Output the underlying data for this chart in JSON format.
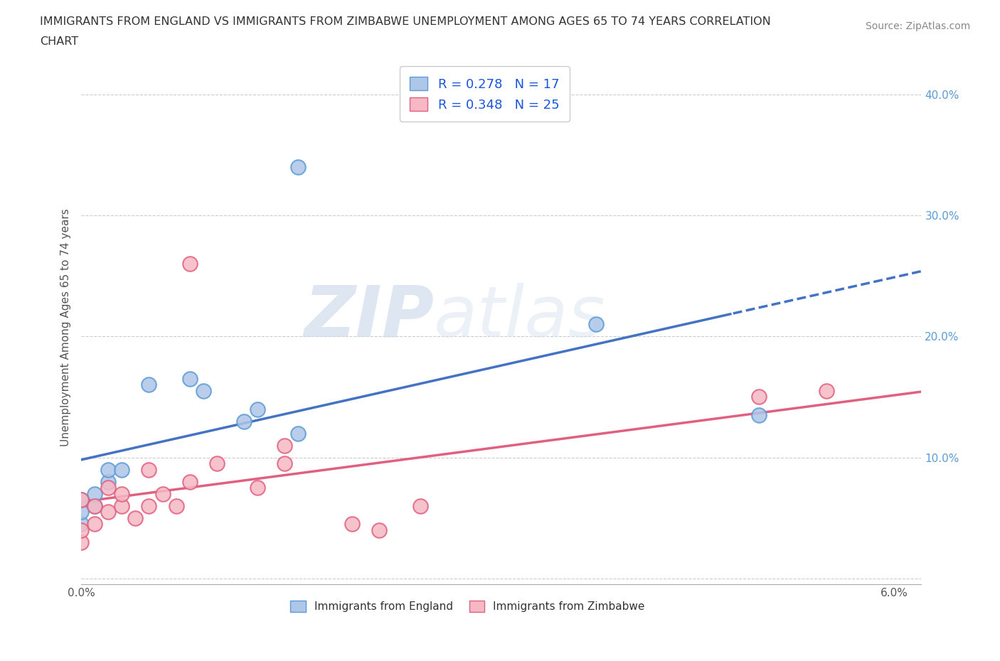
{
  "title_line1": "IMMIGRANTS FROM ENGLAND VS IMMIGRANTS FROM ZIMBABWE UNEMPLOYMENT AMONG AGES 65 TO 74 YEARS CORRELATION",
  "title_line2": "CHART",
  "source": "Source: ZipAtlas.com",
  "ylabel": "Unemployment Among Ages 65 to 74 years",
  "xlim": [
    0.0,
    0.062
  ],
  "ylim": [
    -0.005,
    0.42
  ],
  "xticks": [
    0.0,
    0.01,
    0.02,
    0.03,
    0.04,
    0.05,
    0.06
  ],
  "xticklabels": [
    "0.0%",
    "",
    "",
    "",
    "",
    "",
    "6.0%"
  ],
  "yticks": [
    0.0,
    0.1,
    0.2,
    0.3,
    0.4
  ],
  "yticklabels": [
    "",
    "10.0%",
    "20.0%",
    "30.0%",
    "40.0%"
  ],
  "england_R": 0.278,
  "england_N": 17,
  "zimbabwe_R": 0.348,
  "zimbabwe_N": 25,
  "england_color": "#aec6e8",
  "zimbabwe_color": "#f5b8c4",
  "england_edge_color": "#5b9bd5",
  "zimbabwe_edge_color": "#e06080",
  "england_line_color": "#4472c4",
  "zimbabwe_line_color": "#e06080",
  "watermark_zip": "ZIP",
  "watermark_atlas": "atlas",
  "england_x": [
    0.0,
    0.0,
    0.0,
    0.001,
    0.001,
    0.002,
    0.002,
    0.003,
    0.005,
    0.008,
    0.009,
    0.012,
    0.013,
    0.016,
    0.016,
    0.038,
    0.05
  ],
  "england_y": [
    0.045,
    0.055,
    0.065,
    0.06,
    0.07,
    0.08,
    0.09,
    0.09,
    0.16,
    0.165,
    0.155,
    0.13,
    0.14,
    0.12,
    0.34,
    0.21,
    0.135
  ],
  "zimbabwe_x": [
    0.0,
    0.0,
    0.0,
    0.001,
    0.001,
    0.002,
    0.002,
    0.003,
    0.003,
    0.004,
    0.005,
    0.005,
    0.006,
    0.007,
    0.008,
    0.008,
    0.01,
    0.013,
    0.015,
    0.015,
    0.02,
    0.022,
    0.025,
    0.05,
    0.055
  ],
  "zimbabwe_y": [
    0.03,
    0.04,
    0.065,
    0.045,
    0.06,
    0.055,
    0.075,
    0.06,
    0.07,
    0.05,
    0.06,
    0.09,
    0.07,
    0.06,
    0.08,
    0.26,
    0.095,
    0.075,
    0.095,
    0.11,
    0.045,
    0.04,
    0.06,
    0.15,
    0.155
  ],
  "grid_color": "#cccccc",
  "background_color": "#ffffff",
  "legend_text_color": "#1a56db",
  "legend_label_color": "#333333"
}
